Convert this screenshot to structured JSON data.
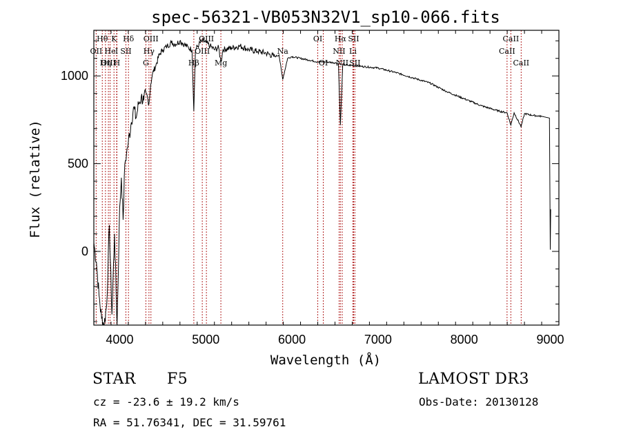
{
  "chart_data": {
    "type": "line",
    "title": "spec-56321-VB053N32V1_sp10-066.fits",
    "xlabel": "Wavelength (Å)",
    "ylabel": "Flux (relative)",
    "xlim": [
      3700,
      9100
    ],
    "ylim": [
      -420,
      1260
    ],
    "xticks": [
      4000,
      5000,
      6000,
      7000,
      8000,
      9000
    ],
    "yticks": [
      0,
      500,
      1000
    ],
    "spectrum": {
      "x": [
        3700,
        3730,
        3760,
        3790,
        3820,
        3850,
        3880,
        3910,
        3940,
        3970,
        4000,
        4020,
        4040,
        4060,
        4080,
        4100,
        4130,
        4160,
        4190,
        4220,
        4250,
        4280,
        4310,
        4340,
        4360,
        4380,
        4420,
        4460,
        4500,
        4550,
        4600,
        4650,
        4700,
        4750,
        4800,
        4840,
        4861,
        4880,
        4920,
        4960,
        5000,
        5050,
        5100,
        5150,
        5175,
        5200,
        5300,
        5400,
        5500,
        5600,
        5700,
        5800,
        5850,
        5893,
        5950,
        6000,
        6100,
        6200,
        6300,
        6400,
        6500,
        6540,
        6563,
        6590,
        6650,
        6700,
        6800,
        7000,
        7200,
        7400,
        7600,
        7800,
        8000,
        8200,
        8400,
        8498,
        8542,
        8580,
        8662,
        8700,
        8800,
        8900,
        8990,
        9000,
        9005
      ],
      "y": [
        50,
        -60,
        -250,
        -380,
        -420,
        -300,
        150,
        -360,
        100,
        -430,
        250,
        420,
        180,
        500,
        560,
        620,
        720,
        820,
        760,
        840,
        880,
        860,
        900,
        840,
        950,
        1010,
        1060,
        1120,
        1150,
        1170,
        1190,
        1180,
        1200,
        1180,
        1160,
        1150,
        800,
        1150,
        1180,
        1200,
        1190,
        1170,
        1150,
        1160,
        1080,
        1150,
        1160,
        1170,
        1150,
        1140,
        1130,
        1110,
        1120,
        980,
        1100,
        1110,
        1100,
        1090,
        1080,
        1080,
        1075,
        1070,
        720,
        1065,
        1060,
        1060,
        1055,
        1045,
        1020,
        990,
        960,
        910,
        870,
        830,
        800,
        790,
        720,
        790,
        710,
        785,
        775,
        770,
        760,
        10,
        240
      ]
    },
    "lines": [
      {
        "label": "Hθ",
        "x": 3798,
        "row": 0
      },
      {
        "label": "OII",
        "x": 3727,
        "row": 1
      },
      {
        "label": "OIII",
        "x": 3869,
        "row": 2
      },
      {
        "label": "K",
        "x": 3934,
        "row": 0
      },
      {
        "label": "He",
        "x": 3889,
        "row": 1
      },
      {
        "label": "Hη",
        "x": 3835,
        "row": 2
      },
      {
        "label": "I",
        "x": 3965,
        "row": 1
      },
      {
        "label": "H",
        "x": 3968,
        "row": 2
      },
      {
        "label": "Hδ",
        "x": 4102,
        "row": 0
      },
      {
        "label": "SII",
        "x": 4072,
        "row": 1
      },
      {
        "label": "OIII",
        "x": 4363,
        "row": 0
      },
      {
        "label": "Hγ",
        "x": 4340,
        "row": 1
      },
      {
        "label": "G",
        "x": 4304,
        "row": 2
      },
      {
        "label": "OIII",
        "x": 5007,
        "row": 0
      },
      {
        "label": "OIII",
        "x": 4959,
        "row": 1
      },
      {
        "label": "Hβ",
        "x": 4861,
        "row": 2
      },
      {
        "label": "Mg",
        "x": 5175,
        "row": 2
      },
      {
        "label": "Na",
        "x": 5893,
        "row": 1
      },
      {
        "label": "OI",
        "x": 6300,
        "row": 0
      },
      {
        "label": "OI",
        "x": 6364,
        "row": 2
      },
      {
        "label": "Hα",
        "x": 6563,
        "row": 0
      },
      {
        "label": "SII",
        "x": 6716,
        "row": 0
      },
      {
        "label": "NII",
        "x": 6548,
        "row": 1
      },
      {
        "label": "Li",
        "x": 6708,
        "row": 1
      },
      {
        "label": "NII",
        "x": 6584,
        "row": 2
      },
      {
        "label": "SII",
        "x": 6731,
        "row": 2
      },
      {
        "label": "CaII",
        "x": 8542,
        "row": 0
      },
      {
        "label": "CaII",
        "x": 8498,
        "row": 1
      },
      {
        "label": "CaII",
        "x": 8662,
        "row": 2
      }
    ]
  },
  "info": {
    "object_type": "STAR",
    "subclass": "F5",
    "survey": "LAMOST DR3",
    "cz": "cz = -23.6 ± 19.2 km/s",
    "obs_date": "Obs-Date: 20130128",
    "coords": "RA =  51.76341, DEC =  31.59761"
  }
}
